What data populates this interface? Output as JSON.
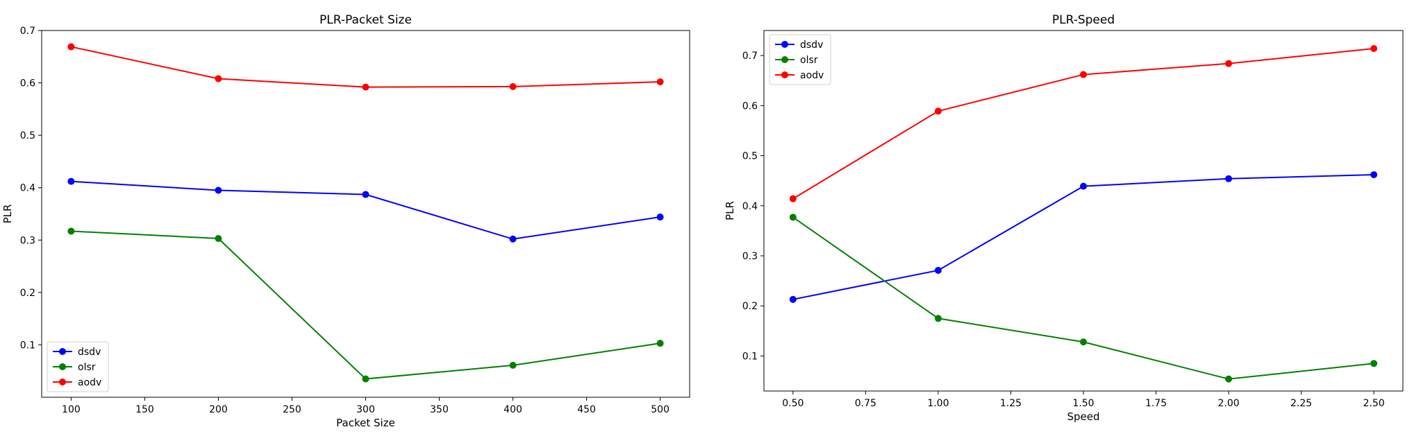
{
  "chart_data": [
    {
      "type": "line",
      "title": "PLR-Packet Size",
      "xlabel": "Packet Size",
      "ylabel": "PLR",
      "x": [
        100,
        200,
        300,
        400,
        500
      ],
      "xlim": [
        80,
        520
      ],
      "ylim": [
        0.0,
        0.7
      ],
      "xticks": [
        100,
        150,
        200,
        250,
        300,
        350,
        400,
        450,
        500
      ],
      "xtick_labels": [
        "100",
        "150",
        "200",
        "250",
        "300",
        "350",
        "400",
        "450",
        "500"
      ],
      "yticks": [
        0.1,
        0.2,
        0.3,
        0.4,
        0.5,
        0.6,
        0.7
      ],
      "ytick_labels": [
        "0.1",
        "0.2",
        "0.3",
        "0.4",
        "0.5",
        "0.6",
        "0.7"
      ],
      "grid": false,
      "legend_position": "lower-left",
      "series": [
        {
          "name": "dsdv",
          "color": "#0000ff",
          "values": [
            0.412,
            0.395,
            0.387,
            0.302,
            0.344
          ]
        },
        {
          "name": "olsr",
          "color": "#008000",
          "values": [
            0.317,
            0.303,
            0.035,
            0.061,
            0.103
          ]
        },
        {
          "name": "aodv",
          "color": "#ff0000",
          "values": [
            0.669,
            0.608,
            0.592,
            0.593,
            0.602
          ]
        }
      ]
    },
    {
      "type": "line",
      "title": "PLR-Speed",
      "xlabel": "Speed",
      "ylabel": "PLR",
      "x": [
        0.5,
        1.0,
        1.5,
        2.0,
        2.5
      ],
      "xlim": [
        0.4,
        2.6
      ],
      "ylim": [
        0.03,
        0.75
      ],
      "xticks": [
        0.5,
        0.75,
        1.0,
        1.25,
        1.5,
        1.75,
        2.0,
        2.25,
        2.5
      ],
      "xtick_labels": [
        "0.50",
        "0.75",
        "1.00",
        "1.25",
        "1.50",
        "1.75",
        "2.00",
        "2.25",
        "2.50"
      ],
      "yticks": [
        0.1,
        0.2,
        0.3,
        0.4,
        0.5,
        0.6,
        0.7
      ],
      "ytick_labels": [
        "0.1",
        "0.2",
        "0.3",
        "0.4",
        "0.5",
        "0.6",
        "0.7"
      ],
      "grid": false,
      "legend_position": "upper-left",
      "series": [
        {
          "name": "dsdv",
          "color": "#0000ff",
          "values": [
            0.213,
            0.271,
            0.439,
            0.454,
            0.462
          ]
        },
        {
          "name": "olsr",
          "color": "#008000",
          "values": [
            0.377,
            0.175,
            0.128,
            0.054,
            0.085
          ]
        },
        {
          "name": "aodv",
          "color": "#ff0000",
          "values": [
            0.414,
            0.589,
            0.662,
            0.684,
            0.714
          ]
        }
      ]
    }
  ]
}
